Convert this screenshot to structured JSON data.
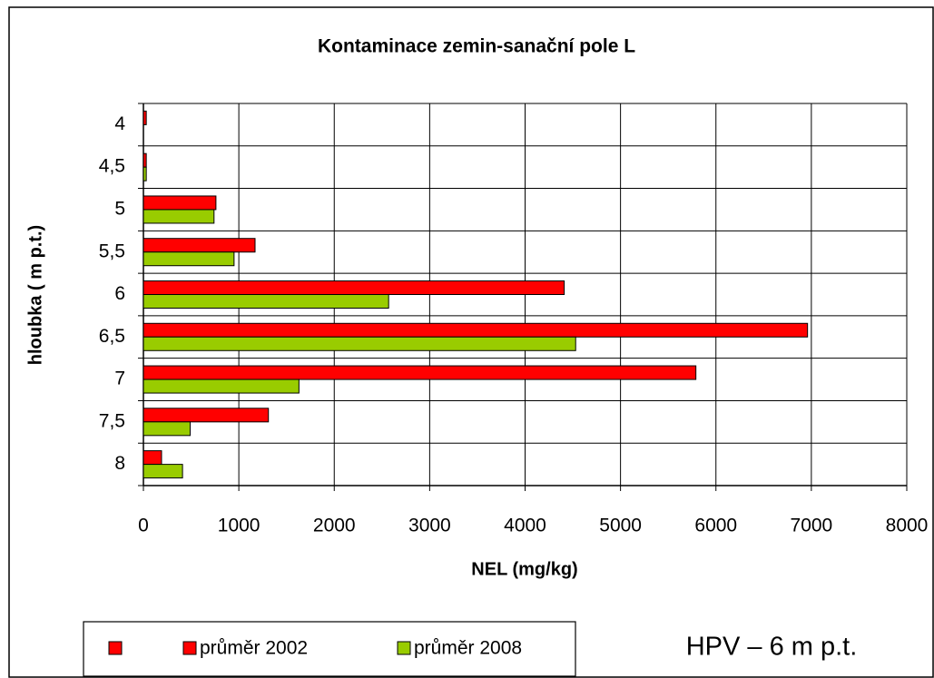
{
  "chart_data": {
    "type": "barh",
    "title": "Kontaminace zemin-sanační pole L",
    "x_label": "NEL (mg/kg)",
    "y_label": "hloubka ( m p.t.)",
    "annotation": "HPV – 6 m p.t.",
    "categories": [
      "4",
      "4,5",
      "5",
      "5,5",
      "6",
      "6,5",
      "7",
      "7,5",
      "8"
    ],
    "series": [
      {
        "name": "průměr 2002",
        "color": "#ff0000",
        "values": [
          30,
          30,
          760,
          1170,
          4410,
          6960,
          5790,
          1310,
          190
        ]
      },
      {
        "name": "průměr 2008",
        "color": "#99cc00",
        "values": [
          0,
          30,
          740,
          950,
          2570,
          4530,
          1630,
          490,
          410
        ]
      }
    ],
    "xlim": [
      0,
      8000
    ],
    "xticks": [
      0,
      1000,
      2000,
      3000,
      4000,
      5000,
      6000,
      7000,
      8000
    ],
    "grid": true
  }
}
